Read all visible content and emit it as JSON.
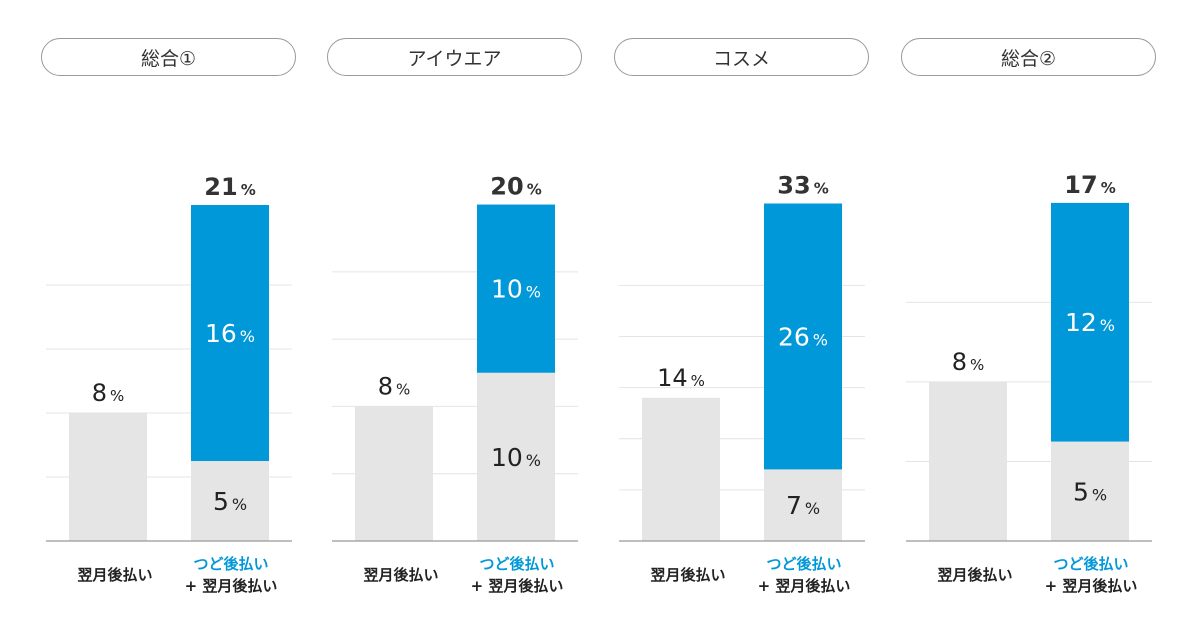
{
  "colors": {
    "accent": "#0098d9",
    "base": "#e5e5e5",
    "grid": "#e4e4e4",
    "axis": "#999999",
    "text": "#222222"
  },
  "xlabels": {
    "plain": "翌月後払い",
    "accent": "つど後払い",
    "accent_sub": "+ 翌月後払い"
  },
  "chart_data": [
    {
      "type": "bar",
      "title": "総合①",
      "categories": [
        "翌月後払い",
        "つど後払い + 翌月後払い"
      ],
      "series": [],
      "values": {
        "plain": 8,
        "base": 5,
        "tsudo": 16,
        "total": 21
      },
      "unit": "%",
      "ylim": [
        0,
        22.5
      ],
      "gridlines": [
        4,
        8,
        12,
        16
      ],
      "grid": true
    },
    {
      "type": "bar",
      "title": "アイウエア",
      "categories": [
        "翌月後払い",
        "つど後払い + 翌月後払い"
      ],
      "series": [],
      "values": {
        "plain": 8,
        "base": 10,
        "tsudo": 10,
        "total": 20
      },
      "unit": "%",
      "ylim": [
        0,
        21.4
      ],
      "gridlines": [
        4,
        8,
        12,
        16
      ],
      "grid": true
    },
    {
      "type": "bar",
      "title": "コスメ",
      "categories": [
        "翌月後払い",
        "つど後払い + 翌月後払い"
      ],
      "series": [],
      "values": {
        "plain": 14,
        "base": 7,
        "tsudo": 26,
        "total": 33
      },
      "unit": "%",
      "ylim": [
        0,
        35.2
      ],
      "gridlines": [
        5,
        10,
        15,
        20,
        25
      ],
      "grid": true
    },
    {
      "type": "bar",
      "title": "総合②",
      "categories": [
        "翌月後払い",
        "つど後払い + 翌月後払い"
      ],
      "series": [],
      "values": {
        "plain": 8,
        "base": 5,
        "tsudo": 12,
        "total": 17
      },
      "unit": "%",
      "ylim": [
        0,
        18.1
      ],
      "gridlines": [
        4,
        8,
        12
      ],
      "grid": true
    }
  ]
}
